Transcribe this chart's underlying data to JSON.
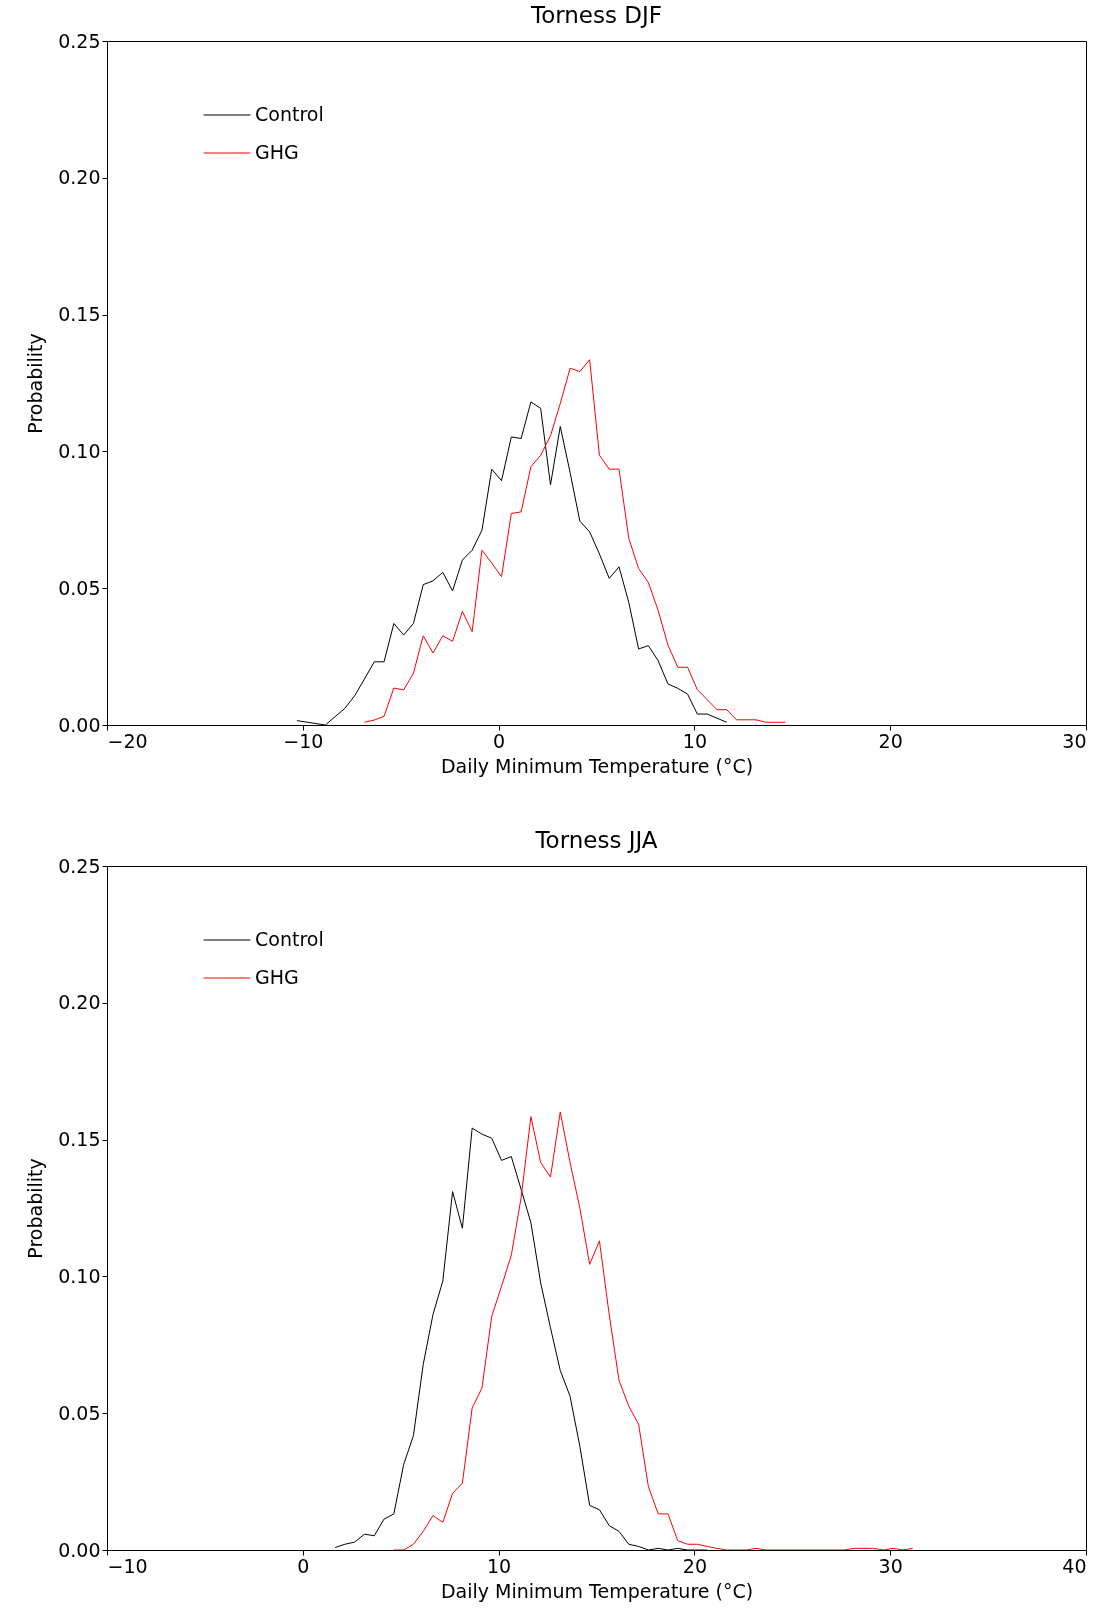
{
  "chart_data": [
    {
      "type": "line",
      "title": "Torness DJF",
      "xlabel": "Daily Minimum Temperature (°C)",
      "ylabel": "Probability",
      "xlim": [
        -20,
        30
      ],
      "xticks": [
        -20,
        -10,
        0,
        10,
        20,
        30
      ],
      "ylim": [
        0,
        0.25
      ],
      "yticks": [
        {
          "value": 0,
          "label": "0.00"
        },
        {
          "value": 0.05,
          "label": "0.05"
        },
        {
          "value": 0.1,
          "label": "0.10"
        },
        {
          "value": 0.15,
          "label": "0.15"
        },
        {
          "value": 0.2,
          "label": "0.20"
        },
        {
          "value": 0.25,
          "label": "0.25"
        }
      ],
      "grid": false,
      "legend": "top left",
      "series": [
        {
          "name": "Control",
          "color": "#000000",
          "x": [
            -10.3,
            -8.85,
            -7.85,
            -7.35,
            -6.85,
            -6.35,
            -5.85,
            -5.35,
            -4.85,
            -4.35,
            -3.85,
            -3.35,
            -2.85,
            -2.35,
            -1.85,
            -1.35,
            -0.85,
            -0.35,
            0.15,
            0.65,
            1.15,
            1.65,
            2.15,
            2.65,
            3.15,
            3.65,
            4.15,
            4.65,
            5.15,
            5.65,
            6.15,
            6.65,
            7.15,
            7.65,
            8.15,
            8.65,
            9.15,
            9.65,
            10.15,
            10.65,
            11.65
          ],
          "values": [
            0.0016,
            0,
            0.0061,
            0.0107,
            0.0168,
            0.0231,
            0.0231,
            0.0371,
            0.0329,
            0.0371,
            0.0513,
            0.0527,
            0.0558,
            0.049,
            0.0603,
            0.0639,
            0.0712,
            0.0935,
            0.0893,
            0.1053,
            0.1047,
            0.1181,
            0.1157,
            0.0878,
            0.1091,
            0.0923,
            0.0745,
            0.0706,
            0.0625,
            0.0536,
            0.0578,
            0.0448,
            0.0278,
            0.029,
            0.0235,
            0.015,
            0.0134,
            0.0113,
            0.004,
            0.004,
            0.001
          ]
        },
        {
          "name": "GHG",
          "color": "#ff0000",
          "x": [
            -6.85,
            -6.35,
            -5.85,
            -5.35,
            -4.85,
            -4.35,
            -3.85,
            -3.35,
            -2.85,
            -2.35,
            -1.85,
            -1.35,
            -0.85,
            -0.35,
            0.15,
            0.65,
            1.15,
            1.65,
            2.15,
            2.65,
            3.15,
            3.65,
            4.15,
            4.65,
            5.15,
            5.65,
            6.15,
            6.65,
            7.15,
            7.65,
            8.15,
            8.65,
            9.15,
            9.65,
            10.15,
            10.65,
            11.15,
            11.65,
            12.15,
            13.15,
            13.65,
            14.65
          ],
          "values": [
            0.001,
            0.0018,
            0.0032,
            0.0135,
            0.0128,
            0.0189,
            0.0326,
            0.0263,
            0.0326,
            0.0306,
            0.0415,
            0.0341,
            0.0639,
            0.0592,
            0.0542,
            0.0773,
            0.0779,
            0.0944,
            0.0986,
            0.1057,
            0.1175,
            0.1304,
            0.1292,
            0.1335,
            0.0986,
            0.0935,
            0.0935,
            0.0682,
            0.0572,
            0.0521,
            0.0418,
            0.0292,
            0.0211,
            0.0211,
            0.0129,
            0.0093,
            0.0056,
            0.0056,
            0.0019,
            0.0019,
            0.001,
            0.001
          ]
        }
      ]
    },
    {
      "type": "line",
      "title": "Torness JJA",
      "xlabel": "Daily Minimum Temperature (°C)",
      "ylabel": "Probability",
      "xlim": [
        -10,
        40
      ],
      "xticks": [
        -10,
        0,
        10,
        20,
        30,
        40
      ],
      "ylim": [
        0,
        0.25
      ],
      "yticks": [
        {
          "value": 0,
          "label": "0.00"
        },
        {
          "value": 0.05,
          "label": "0.05"
        },
        {
          "value": 0.1,
          "label": "0.10"
        },
        {
          "value": 0.15,
          "label": "0.15"
        },
        {
          "value": 0.2,
          "label": "0.20"
        },
        {
          "value": 0.25,
          "label": "0.25"
        }
      ],
      "grid": false,
      "legend": "top left",
      "series": [
        {
          "name": "Control",
          "color": "#000000",
          "x": [
            1.65,
            2.15,
            2.65,
            3.15,
            3.65,
            4.15,
            4.65,
            5.15,
            5.65,
            6.15,
            6.65,
            7.15,
            7.65,
            8.15,
            8.65,
            9.15,
            9.65,
            10.15,
            10.65,
            11.15,
            11.65,
            12.15,
            12.65,
            13.15,
            13.65,
            14.15,
            14.65,
            15.15,
            15.65,
            16.15,
            16.65,
            17.15,
            17.65,
            18.15,
            18.65,
            19.15,
            19.65,
            20.15,
            20.65
          ],
          "values": [
            0.0009,
            0.0021,
            0.0029,
            0.0058,
            0.0052,
            0.0113,
            0.0132,
            0.0312,
            0.0418,
            0.0678,
            0.0861,
            0.0983,
            0.131,
            0.1176,
            0.1542,
            0.152,
            0.1505,
            0.1424,
            0.1438,
            0.1318,
            0.1196,
            0.0976,
            0.0812,
            0.0656,
            0.0562,
            0.0379,
            0.0163,
            0.0147,
            0.0089,
            0.0068,
            0.0021,
            0.0013,
            0,
            0.0006,
            0,
            0.0006,
            0,
            0,
            0
          ]
        },
        {
          "name": "GHG",
          "color": "#ff0000",
          "x": [
            4.65,
            5.15,
            5.65,
            6.15,
            6.65,
            7.15,
            7.65,
            8.15,
            8.65,
            9.15,
            9.65,
            10.15,
            10.65,
            11.15,
            11.65,
            12.15,
            12.65,
            13.15,
            13.65,
            14.15,
            14.65,
            15.15,
            15.65,
            16.15,
            16.65,
            17.15,
            17.65,
            18.15,
            18.65,
            19.15,
            19.65,
            20.15,
            20.65,
            21.15,
            21.65,
            22.65,
            23.15,
            23.65,
            27.65,
            28.15,
            29.15,
            29.65,
            30.15,
            30.65,
            31.15
          ],
          "values": [
            0,
            0,
            0.0021,
            0.0068,
            0.0126,
            0.0101,
            0.0207,
            0.0244,
            0.0519,
            0.0592,
            0.0854,
            0.0964,
            0.1078,
            0.1288,
            0.1584,
            0.1416,
            0.1363,
            0.1601,
            0.1416,
            0.125,
            0.1044,
            0.113,
            0.086,
            0.062,
            0.0525,
            0.046,
            0.0232,
            0.0132,
            0.0132,
            0.0034,
            0.0021,
            0.0021,
            0.0013,
            0.0006,
            0,
            0,
            0.0006,
            0,
            0,
            0.0006,
            0.0006,
            0,
            0.0006,
            0,
            0.0006
          ]
        }
      ]
    }
  ]
}
